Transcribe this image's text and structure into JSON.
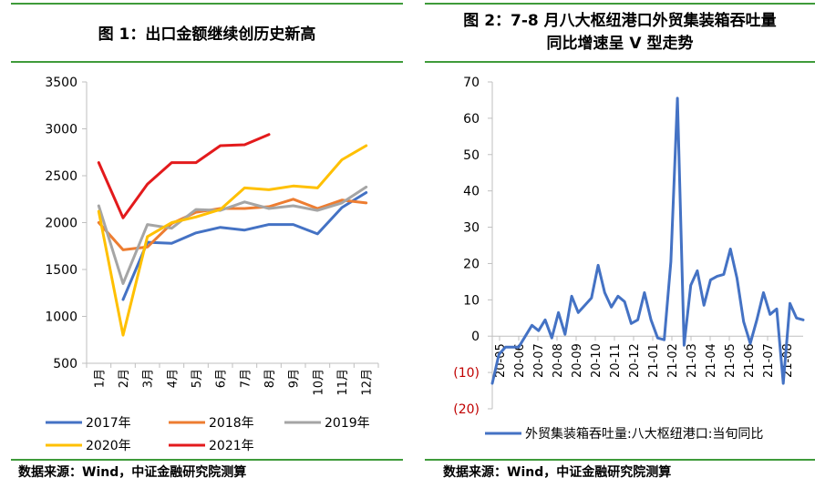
{
  "chart1": {
    "title": "图 1：出口金额继续创历史新高",
    "source": "数据来源：Wind，中证金融研究院测算",
    "chart_data": {
      "type": "line",
      "categories": [
        "1月",
        "2月",
        "3月",
        "4月",
        "5月",
        "6月",
        "7月",
        "8月",
        "9月",
        "10月",
        "11月",
        "12月"
      ],
      "ylim": [
        500,
        3500
      ],
      "yticks": [
        "500",
        "1000",
        "1500",
        "2000",
        "2500",
        "3000",
        "3500"
      ],
      "series": [
        {
          "name": "2017年",
          "color": "#4472c4",
          "values": [
            null,
            1180,
            1790,
            1780,
            1890,
            1950,
            1920,
            1980,
            1980,
            1880,
            2160,
            2320
          ]
        },
        {
          "name": "2018年",
          "color": "#ed7d31",
          "values": [
            2000,
            1710,
            1740,
            1990,
            2110,
            2150,
            2150,
            2170,
            2250,
            2150,
            2240,
            2210
          ]
        },
        {
          "name": "2019年",
          "color": "#a5a5a5",
          "values": [
            2180,
            1350,
            1980,
            1940,
            2140,
            2130,
            2220,
            2150,
            2180,
            2130,
            2210,
            2380
          ]
        },
        {
          "name": "2020年",
          "color": "#ffc000",
          "values": [
            2120,
            800,
            1850,
            2000,
            2060,
            2140,
            2370,
            2350,
            2390,
            2370,
            2670,
            2820
          ]
        },
        {
          "name": "2021年",
          "color": "#e31a1c",
          "values": [
            2640,
            2050,
            2410,
            2640,
            2640,
            2820,
            2830,
            2940,
            null,
            null,
            null,
            null
          ]
        }
      ]
    }
  },
  "chart2": {
    "title_line1": "图 2：7-8 月八大枢纽港口外贸集装箱吞吐量",
    "title_line2": "同比增速呈 V 型走势",
    "source": "数据来源：Wind，中证金融研究院测算",
    "chart_data": {
      "type": "line",
      "ylim": [
        -20,
        70
      ],
      "yticks": [
        "(20)",
        "(10)",
        "0",
        "10",
        "20",
        "30",
        "40",
        "50",
        "60",
        "70"
      ],
      "x_tick_labels": [
        "20-05",
        "20-06",
        "20-07",
        "20-08",
        "20-09",
        "20-10",
        "20-11",
        "20-12",
        "21-01",
        "21-02",
        "21-03",
        "21-04",
        "21-05",
        "21-06",
        "21-07",
        "21-08"
      ],
      "series": [
        {
          "name": "外贸集装箱吞吐量:八大枢纽港口:当旬同比",
          "color": "#4472c4",
          "values": [
            -13,
            -5,
            -3,
            -3,
            -3,
            0,
            3,
            1.5,
            4.5,
            -0.5,
            6.5,
            0.5,
            11,
            6.5,
            8.5,
            10.5,
            19.5,
            12,
            8,
            11,
            9.5,
            3.5,
            4.5,
            12,
            4.5,
            -0.5,
            -1,
            20.5,
            65.5,
            -2.5,
            14,
            18,
            8.5,
            15.5,
            16.5,
            17,
            24,
            16,
            4,
            -2,
            4.5,
            12,
            6,
            7.5,
            -13,
            9,
            5,
            4.5
          ]
        }
      ]
    }
  }
}
